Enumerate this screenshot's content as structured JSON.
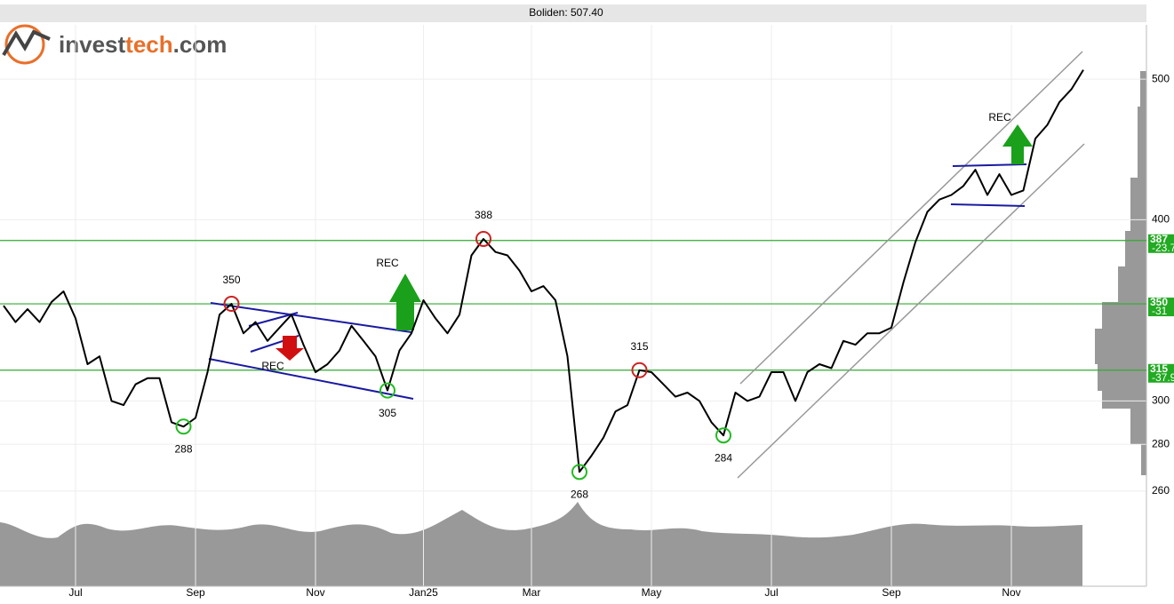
{
  "logo_parts": [
    "invest",
    "tech",
    ".com"
  ],
  "chart_data": {
    "type": "line",
    "title": "Boliden: 507.40",
    "log_scale": true,
    "grid": true,
    "color": "#000000",
    "categories": [
      null,
      null,
      null,
      null,
      null,
      null,
      "Jul",
      null,
      null,
      null,
      null,
      null,
      null,
      null,
      null,
      null,
      "Sep",
      null,
      null,
      null,
      null,
      null,
      null,
      null,
      null,
      null,
      "Nov",
      null,
      null,
      null,
      null,
      null,
      null,
      null,
      null,
      "Jan25",
      null,
      null,
      null,
      null,
      null,
      null,
      null,
      null,
      "Mar",
      null,
      null,
      null,
      null,
      null,
      null,
      null,
      null,
      null,
      "May",
      null,
      null,
      null,
      null,
      null,
      null,
      null,
      null,
      null,
      "Jul",
      null,
      null,
      null,
      null,
      null,
      null,
      null,
      null,
      null,
      "Sep",
      null,
      null,
      null,
      null,
      null,
      null,
      null,
      null,
      null,
      "Nov",
      null,
      null,
      null,
      null,
      null,
      null
    ],
    "values": [
      349,
      340,
      347,
      340,
      351,
      357,
      342,
      318,
      322,
      300,
      298,
      308,
      311,
      311,
      290,
      288,
      292,
      314,
      344,
      350,
      334,
      340,
      330,
      337,
      344,
      328,
      314,
      318,
      325,
      338,
      330,
      322,
      305,
      325,
      334,
      352,
      342,
      334,
      344,
      378,
      388,
      380,
      378,
      369,
      357,
      360,
      352,
      322,
      268,
      275,
      283,
      295,
      298,
      315,
      314,
      308,
      302,
      304,
      300,
      290,
      284,
      304,
      300,
      302,
      314,
      314,
      300,
      314,
      318,
      316,
      330,
      328,
      334,
      334,
      337,
      362,
      386,
      405,
      413,
      416,
      422,
      433,
      416,
      430,
      416,
      419,
      455,
      465,
      482,
      492,
      507.4
    ],
    "ylim": [
      252,
      545
    ],
    "yticks": [
      260,
      280,
      300,
      400,
      500
    ],
    "pivots": [
      {
        "value": 288,
        "kind": "low"
      },
      {
        "value": 350,
        "kind": "high"
      },
      {
        "value": 305,
        "kind": "low"
      },
      {
        "value": 388,
        "kind": "high"
      },
      {
        "value": 268,
        "kind": "low"
      },
      {
        "value": 315,
        "kind": "high"
      },
      {
        "value": 284,
        "kind": "low"
      }
    ],
    "levels": [
      {
        "value": 387,
        "change": -23.7
      },
      {
        "value": 350,
        "change": -31.0
      },
      {
        "value": 315,
        "change": -37.9
      }
    ],
    "annotations": [
      "REC",
      "REC",
      "REC"
    ]
  }
}
